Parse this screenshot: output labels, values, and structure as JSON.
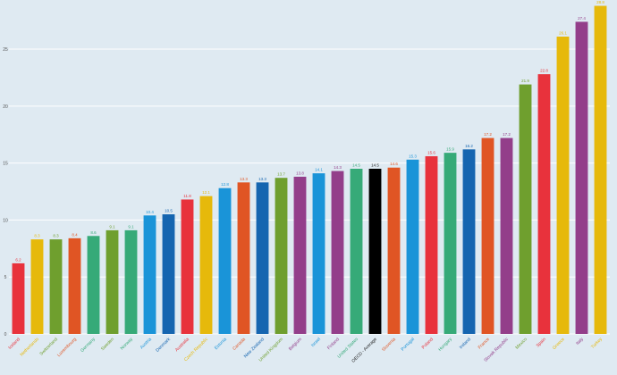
{
  "chart_data": {
    "type": "bar",
    "title": "",
    "xlabel": "",
    "ylabel": "",
    "ylim": [
      0,
      29
    ],
    "yticks": [
      0,
      5,
      10,
      15,
      20,
      25
    ],
    "grid": true,
    "categories": [
      "Iceland",
      "Netherlands",
      "Switzerland",
      "Luxembourg",
      "Germany",
      "Sweden",
      "Norway",
      "Austria",
      "Denmark",
      "Australia",
      "Czech Republic",
      "Estonia",
      "Canada",
      "New Zealand",
      "United Kingdom",
      "Belgium",
      "Israel",
      "Finland",
      "United States",
      "OECD - Average",
      "Slovenia",
      "Portugal",
      "Poland",
      "Hungary",
      "Ireland",
      "France",
      "Slovak Republic",
      "Mexico",
      "Spain",
      "Greece",
      "Italy",
      "Turkey"
    ],
    "values": [
      6.2,
      8.3,
      8.3,
      8.4,
      8.6,
      9.1,
      9.1,
      10.4,
      10.5,
      11.8,
      12.1,
      12.8,
      13.3,
      13.3,
      13.7,
      13.8,
      14.1,
      14.3,
      14.5,
      14.5,
      14.6,
      15.3,
      15.6,
      15.9,
      16.2,
      17.2,
      17.2,
      21.9,
      22.8,
      26.1,
      27.4,
      28.8
    ],
    "colors": [
      "#e8323c",
      "#e6b90b",
      "#6f9f2e",
      "#e05524",
      "#36aa78",
      "#6f9f2e",
      "#36aa78",
      "#1a94d8",
      "#1565b0",
      "#e8323c",
      "#e6b90b",
      "#1a94d8",
      "#e05524",
      "#1565b0",
      "#6f9f2e",
      "#933e8a",
      "#1a94d8",
      "#933e8a",
      "#36aa78",
      "#000000",
      "#e05524",
      "#1a94d8",
      "#e8323c",
      "#36aa78",
      "#1565b0",
      "#e05524",
      "#933e8a",
      "#6f9f2e",
      "#e8323c",
      "#e6b90b",
      "#933e8a",
      "#e6b90b"
    ]
  }
}
